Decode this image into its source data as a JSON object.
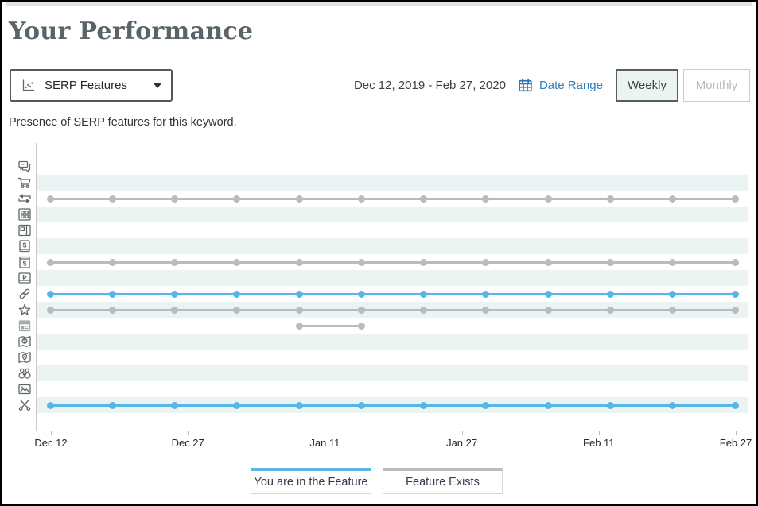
{
  "page": {
    "title": "Your Performance",
    "subtitle": "Presence of SERP features for this keyword."
  },
  "controls": {
    "metric_dropdown": {
      "value": "SERP Features",
      "icon": "scatter-chart-icon"
    },
    "date_range_text": "Dec 12, 2019 - Feb 27, 2020",
    "date_range_link": "Date Range",
    "granularity": [
      {
        "label": "Weekly",
        "selected": true
      },
      {
        "label": "Monthly",
        "selected": false
      }
    ]
  },
  "legend": [
    {
      "label": "You are in the Feature",
      "color": "#58b6e6"
    },
    {
      "label": "Feature Exists",
      "color": "#b8bcbe"
    }
  ],
  "chart_data": {
    "type": "timeline-dot-plot",
    "title": "SERP feature presence over time",
    "x_labels": [
      "Dec 12",
      "Dec 27",
      "Jan 11",
      "Jan 27",
      "Feb 11",
      "Feb 27"
    ],
    "date_range": [
      "Dec 12, 2019",
      "Feb 27, 2020"
    ],
    "interval": "weekly",
    "num_points": 12,
    "colors": {
      "in_feature": "#58b6e6",
      "exists": "#b8bcbe",
      "stripe": "#ebf3f3"
    },
    "rows": [
      {
        "feature": "related-questions",
        "icon": "chat-bubbles-icon",
        "status": null,
        "points": []
      },
      {
        "feature": "shopping",
        "icon": "shopping-cart-icon",
        "status": null,
        "points": []
      },
      {
        "feature": "related-searches",
        "icon": "swap-arrows-icon",
        "status": "exists",
        "points": [
          1,
          2,
          3,
          4,
          5,
          6,
          7,
          8,
          9,
          10,
          11,
          12
        ]
      },
      {
        "feature": "image-pack",
        "icon": "grid-icon",
        "status": null,
        "points": []
      },
      {
        "feature": "knowledge-panel",
        "icon": "panel-layout-icon",
        "status": null,
        "points": []
      },
      {
        "feature": "adwords-bottom",
        "icon": "dollar-box-bottom-icon",
        "status": null,
        "points": []
      },
      {
        "feature": "adwords-top",
        "icon": "dollar-box-top-icon",
        "status": "exists",
        "points": [
          1,
          2,
          3,
          4,
          5,
          6,
          7,
          8,
          9,
          10,
          11,
          12
        ]
      },
      {
        "feature": "video",
        "icon": "video-player-icon",
        "status": null,
        "points": []
      },
      {
        "feature": "sitelinks",
        "icon": "chain-link-icon",
        "status": "in_feature",
        "points": [
          1,
          2,
          3,
          4,
          5,
          6,
          7,
          8,
          9,
          10,
          11,
          12
        ]
      },
      {
        "feature": "reviews",
        "icon": "star-icon",
        "status": "exists",
        "points": [
          1,
          2,
          3,
          4,
          5,
          6,
          7,
          8,
          9,
          10,
          11,
          12
        ]
      },
      {
        "feature": "news",
        "icon": "newspaper-icon",
        "status": "exists",
        "points": [
          5,
          6
        ]
      },
      {
        "feature": "local-teaser",
        "icon": "map-dollar-icon",
        "status": null,
        "points": []
      },
      {
        "feature": "local-pack",
        "icon": "map-pin-icon",
        "status": null,
        "points": []
      },
      {
        "feature": "knowledge-graph",
        "icon": "binoculars-icon",
        "status": null,
        "points": []
      },
      {
        "feature": "images",
        "icon": "picture-icon",
        "status": null,
        "points": []
      },
      {
        "feature": "snippets",
        "icon": "scissors-icon",
        "status": "in_feature",
        "points": [
          1,
          2,
          3,
          4,
          5,
          6,
          7,
          8,
          9,
          10,
          11,
          12
        ]
      }
    ]
  }
}
